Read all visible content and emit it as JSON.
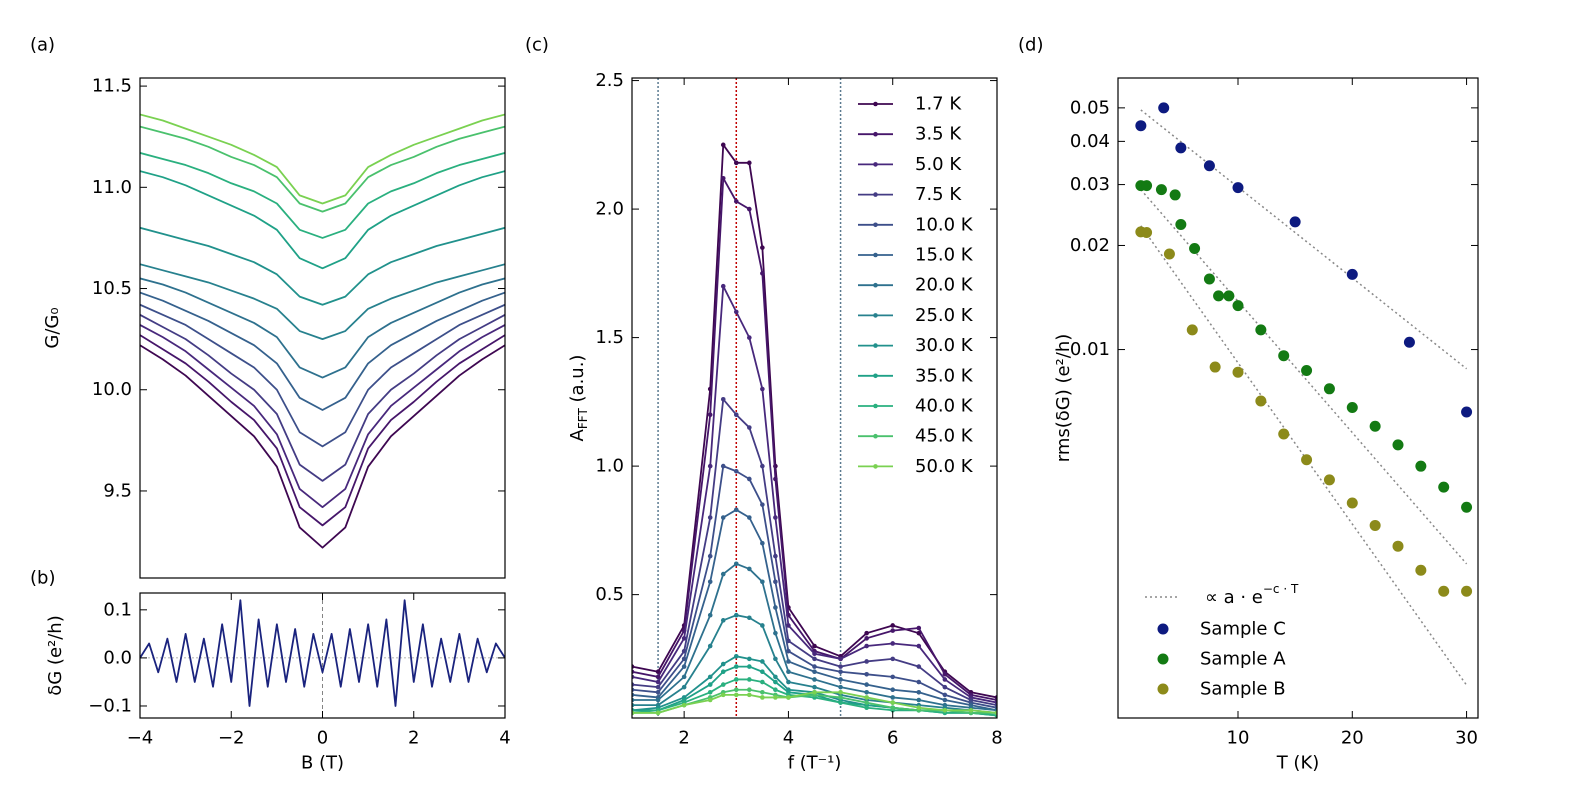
{
  "chart_data": [
    {
      "type": "line",
      "label": "(a)",
      "ylabel": "G/G₀",
      "xlim": [
        -4,
        4
      ],
      "ylim": [
        9.07,
        11.54
      ],
      "yticks": [
        9.5,
        {
          "value": 10,
          "label": "10.0"
        },
        10.5,
        {
          "value": 11,
          "label": "11.0"
        },
        11.5
      ],
      "x": [
        -4,
        -3.5,
        -3,
        -2.5,
        -2,
        -1.5,
        -1,
        -0.5,
        0,
        0.5,
        1,
        1.5,
        2,
        2.5,
        3,
        3.5,
        4
      ],
      "series": [
        {
          "name": "1.7 K",
          "color": "#3e0751",
          "values": [
            10.22,
            10.15,
            10.07,
            9.97,
            9.87,
            9.77,
            9.62,
            9.32,
            9.22,
            9.32,
            9.62,
            9.77,
            9.87,
            9.97,
            10.07,
            10.15,
            10.22
          ]
        },
        {
          "name": "3.5 K",
          "color": "#46166a",
          "values": [
            10.27,
            10.2,
            10.13,
            10.04,
            9.94,
            9.85,
            9.71,
            9.42,
            9.33,
            9.42,
            9.71,
            9.85,
            9.94,
            10.04,
            10.13,
            10.2,
            10.27
          ]
        },
        {
          "name": "5.0 K",
          "color": "#48287c",
          "values": [
            10.32,
            10.26,
            10.19,
            10.1,
            10.01,
            9.92,
            9.78,
            9.51,
            9.42,
            9.51,
            9.78,
            9.92,
            10.01,
            10.1,
            10.19,
            10.26,
            10.32
          ]
        },
        {
          "name": "7.5 K",
          "color": "#443c84",
          "values": [
            10.37,
            10.31,
            10.25,
            10.17,
            10.08,
            10.0,
            9.88,
            9.63,
            9.55,
            9.63,
            9.88,
            10.0,
            10.08,
            10.17,
            10.25,
            10.31,
            10.37
          ]
        },
        {
          "name": "10.0 K",
          "color": "#3d4f8a",
          "values": [
            10.42,
            10.37,
            10.32,
            10.25,
            10.18,
            10.11,
            10.0,
            9.79,
            9.72,
            9.79,
            10.0,
            10.11,
            10.18,
            10.25,
            10.32,
            10.37,
            10.42
          ]
        },
        {
          "name": "15.0 K",
          "color": "#35618d",
          "values": [
            10.48,
            10.44,
            10.39,
            10.34,
            10.28,
            10.22,
            10.13,
            9.96,
            9.9,
            9.96,
            10.13,
            10.22,
            10.28,
            10.34,
            10.39,
            10.44,
            10.48
          ]
        },
        {
          "name": "20.0 K",
          "color": "#2e718e",
          "values": [
            10.55,
            10.52,
            10.48,
            10.43,
            10.38,
            10.33,
            10.26,
            10.11,
            10.06,
            10.11,
            10.26,
            10.33,
            10.38,
            10.43,
            10.48,
            10.52,
            10.55
          ]
        },
        {
          "name": "25.0 K",
          "color": "#27818e",
          "values": [
            10.62,
            10.59,
            10.56,
            10.53,
            10.49,
            10.45,
            10.4,
            10.29,
            10.25,
            10.29,
            10.4,
            10.45,
            10.49,
            10.53,
            10.56,
            10.59,
            10.62
          ]
        },
        {
          "name": "30.0 K",
          "color": "#21918c",
          "values": [
            10.8,
            10.77,
            10.74,
            10.71,
            10.67,
            10.63,
            10.57,
            10.46,
            10.42,
            10.46,
            10.57,
            10.63,
            10.67,
            10.71,
            10.74,
            10.77,
            10.8
          ]
        },
        {
          "name": "35.0 K",
          "color": "#1fa187",
          "values": [
            11.08,
            11.05,
            11.01,
            10.96,
            10.91,
            10.86,
            10.79,
            10.65,
            10.6,
            10.65,
            10.79,
            10.86,
            10.91,
            10.96,
            11.01,
            11.05,
            11.08
          ]
        },
        {
          "name": "40.0 K",
          "color": "#2ab07f",
          "values": [
            11.17,
            11.14,
            11.11,
            11.07,
            11.02,
            10.98,
            10.92,
            10.79,
            10.75,
            10.79,
            10.92,
            10.98,
            11.02,
            11.07,
            11.11,
            11.14,
            11.17
          ]
        },
        {
          "name": "45.0 K",
          "color": "#4ac16d",
          "values": [
            11.3,
            11.27,
            11.24,
            11.2,
            11.15,
            11.11,
            11.05,
            10.92,
            10.88,
            10.92,
            11.05,
            11.11,
            11.15,
            11.2,
            11.24,
            11.27,
            11.3
          ]
        },
        {
          "name": "50.0 K",
          "color": "#7ad151",
          "values": [
            11.36,
            11.33,
            11.29,
            11.25,
            11.21,
            11.16,
            11.1,
            10.96,
            10.92,
            10.96,
            11.1,
            11.16,
            11.21,
            11.25,
            11.29,
            11.33,
            11.36
          ]
        }
      ]
    },
    {
      "type": "line",
      "label": "(b)",
      "ylabel": "δG (e²/h)",
      "xlabel": "B (T)",
      "zero_lines": true,
      "xlim": [
        -4,
        4
      ],
      "ylim": [
        -0.125,
        0.135
      ],
      "xticks": [
        {
          "value": -4,
          "label": "−4"
        },
        {
          "value": -2,
          "label": "−2"
        },
        0,
        2,
        4
      ],
      "yticks": [
        {
          "value": -0.1,
          "label": "−0.1"
        },
        {
          "value": 0,
          "label": "0.0"
        },
        0.1
      ],
      "x": [
        -4,
        -3.8,
        -3.6,
        -3.4,
        -3.2,
        -3,
        -2.8,
        -2.6,
        -2.4,
        -2.2,
        -2,
        -1.8,
        -1.6,
        -1.4,
        -1.2,
        -1,
        -0.8,
        -0.6,
        -0.4,
        -0.2,
        0,
        0.2,
        0.4,
        0.6,
        0.8,
        1,
        1.2,
        1.4,
        1.6,
        1.8,
        2,
        2.2,
        2.4,
        2.6,
        2.8,
        3,
        3.2,
        3.4,
        3.6,
        3.8,
        4
      ],
      "series": [
        {
          "name": "δG",
          "color": "#1a237e",
          "values": [
            0.0,
            0.03,
            -0.03,
            0.04,
            -0.05,
            0.05,
            -0.05,
            0.04,
            -0.06,
            0.07,
            -0.05,
            0.12,
            -0.1,
            0.08,
            -0.06,
            0.07,
            -0.05,
            0.06,
            -0.06,
            0.05,
            -0.03,
            0.05,
            -0.06,
            0.06,
            -0.05,
            0.07,
            -0.06,
            0.08,
            -0.1,
            0.12,
            -0.05,
            0.07,
            -0.06,
            0.04,
            -0.05,
            0.05,
            -0.05,
            0.04,
            -0.03,
            0.03,
            0.0
          ]
        }
      ]
    },
    {
      "type": "line",
      "label": "(c)",
      "ylabel": "A",
      "ylabel_sub": "FFT",
      "ylabel_rest": " (a.u.)",
      "xlabel": "f (T⁻¹)",
      "markers": true,
      "legend": "upper right",
      "xlim": [
        1,
        8
      ],
      "ylim": [
        0.02,
        2.51
      ],
      "xticks": [
        2,
        4,
        6,
        8
      ],
      "yticks": [
        0.5,
        {
          "value": 1,
          "label": "1.0"
        },
        1.5,
        {
          "value": 2,
          "label": "2.0"
        },
        2.5
      ],
      "vlines": [
        {
          "x": 1.5,
          "color": "#5a7a90"
        },
        {
          "x": 3,
          "color": "#c00000"
        },
        {
          "x": 5,
          "color": "#5a7a90"
        }
      ],
      "x": [
        1,
        1.5,
        2,
        2.5,
        2.75,
        3,
        3.25,
        3.5,
        3.75,
        4,
        4.5,
        5,
        5.5,
        6,
        6.5,
        7,
        7.5,
        8
      ],
      "series": [
        {
          "name": "1.7 K",
          "color": "#3e0751",
          "values": [
            0.22,
            0.2,
            0.38,
            1.3,
            2.25,
            2.18,
            2.18,
            1.85,
            1.0,
            0.45,
            0.3,
            0.26,
            0.35,
            0.38,
            0.35,
            0.2,
            0.12,
            0.1
          ]
        },
        {
          "name": "3.5 K",
          "color": "#46166a",
          "values": [
            0.2,
            0.18,
            0.36,
            1.2,
            2.12,
            2.03,
            2.0,
            1.75,
            0.95,
            0.42,
            0.28,
            0.25,
            0.33,
            0.36,
            0.37,
            0.19,
            0.11,
            0.09
          ]
        },
        {
          "name": "5.0 K",
          "color": "#48287c",
          "values": [
            0.18,
            0.16,
            0.33,
            1.0,
            1.7,
            1.6,
            1.5,
            1.3,
            0.8,
            0.38,
            0.27,
            0.25,
            0.3,
            0.31,
            0.3,
            0.17,
            0.1,
            0.08
          ]
        },
        {
          "name": "7.5 K",
          "color": "#443c84",
          "values": [
            0.15,
            0.14,
            0.28,
            0.8,
            1.26,
            1.2,
            1.15,
            1.0,
            0.65,
            0.32,
            0.25,
            0.22,
            0.24,
            0.25,
            0.22,
            0.14,
            0.09,
            0.07
          ]
        },
        {
          "name": "10.0 K",
          "color": "#3d4f8a",
          "values": [
            0.13,
            0.12,
            0.25,
            0.65,
            1.0,
            0.98,
            0.95,
            0.85,
            0.55,
            0.28,
            0.22,
            0.2,
            0.19,
            0.18,
            0.16,
            0.11,
            0.08,
            0.06
          ]
        },
        {
          "name": "15.0 K",
          "color": "#35618d",
          "values": [
            0.11,
            0.1,
            0.22,
            0.55,
            0.8,
            0.83,
            0.8,
            0.7,
            0.45,
            0.24,
            0.2,
            0.17,
            0.15,
            0.13,
            0.12,
            0.09,
            0.07,
            0.05
          ]
        },
        {
          "name": "20.0 K",
          "color": "#2e718e",
          "values": [
            0.09,
            0.09,
            0.18,
            0.42,
            0.58,
            0.62,
            0.6,
            0.55,
            0.35,
            0.2,
            0.17,
            0.14,
            0.12,
            0.1,
            0.09,
            0.07,
            0.06,
            0.05
          ]
        },
        {
          "name": "25.0 K",
          "color": "#27818e",
          "values": [
            0.07,
            0.07,
            0.14,
            0.3,
            0.4,
            0.42,
            0.41,
            0.38,
            0.25,
            0.16,
            0.14,
            0.11,
            0.09,
            0.08,
            0.07,
            0.06,
            0.05,
            0.04
          ]
        },
        {
          "name": "30.0 K",
          "color": "#21918c",
          "values": [
            0.05,
            0.06,
            0.1,
            0.18,
            0.23,
            0.26,
            0.25,
            0.24,
            0.18,
            0.13,
            0.12,
            0.09,
            0.07,
            0.06,
            0.05,
            0.05,
            0.04,
            0.04
          ]
        },
        {
          "name": "35.0 K",
          "color": "#1fa187",
          "values": [
            0.05,
            0.05,
            0.09,
            0.15,
            0.2,
            0.22,
            0.22,
            0.2,
            0.16,
            0.12,
            0.11,
            0.08,
            0.07,
            0.06,
            0.05,
            0.04,
            0.04,
            0.03
          ]
        },
        {
          "name": "40.0 K",
          "color": "#2ab07f",
          "values": [
            0.04,
            0.05,
            0.08,
            0.12,
            0.15,
            0.17,
            0.17,
            0.16,
            0.13,
            0.11,
            0.1,
            0.08,
            0.06,
            0.05,
            0.05,
            0.04,
            0.04,
            0.03
          ]
        },
        {
          "name": "45.0 K",
          "color": "#4ac16d",
          "values": [
            0.04,
            0.04,
            0.07,
            0.1,
            0.12,
            0.13,
            0.13,
            0.12,
            0.11,
            0.1,
            0.11,
            0.1,
            0.08,
            0.06,
            0.05,
            0.05,
            0.04,
            0.04
          ]
        },
        {
          "name": "50.0 K",
          "color": "#7ad151",
          "values": [
            0.04,
            0.04,
            0.07,
            0.09,
            0.11,
            0.11,
            0.11,
            0.1,
            0.1,
            0.1,
            0.12,
            0.12,
            0.1,
            0.08,
            0.06,
            0.05,
            0.05,
            0.04
          ]
        }
      ]
    },
    {
      "type": "scatter",
      "label": "(d)",
      "ylabel": "rms(δG) (e²/h)",
      "xlabel": "T (K)",
      "ylog": true,
      "legend": "lower left",
      "xlim": [
        -0.5,
        31
      ],
      "ylim": [
        0.00086,
        0.061
      ],
      "xticks": [
        10,
        20,
        30
      ],
      "yticks": [
        0.01,
        0.02,
        0.03,
        0.04,
        0.05
      ],
      "fit_label": "∝ a · e",
      "fit_label_sup": "−c · T",
      "fit_color": "#888888",
      "fits": [
        {
          "x": [
            1.5,
            30
          ],
          "values": [
            0.0493,
            0.0088
          ]
        },
        {
          "x": [
            1.5,
            30
          ],
          "values": [
            0.029,
            0.0024
          ]
        },
        {
          "x": [
            1.5,
            30
          ],
          "values": [
            0.0228,
            0.00107
          ]
        }
      ],
      "series": [
        {
          "name": "Sample C",
          "color": "#0d1a80",
          "x": [
            1.5,
            3.5,
            5,
            7.5,
            10,
            15,
            20,
            25,
            30
          ],
          "values": [
            0.0444,
            0.05,
            0.0383,
            0.034,
            0.0294,
            0.0234,
            0.0165,
            0.0105,
            0.0066
          ]
        },
        {
          "name": "Sample A",
          "color": "#137a13",
          "x": [
            1.5,
            2,
            3.3,
            4.5,
            5,
            6.2,
            7.5,
            8.3,
            9.2,
            10,
            12,
            14,
            16,
            18,
            20,
            22,
            24,
            26,
            28,
            30
          ],
          "values": [
            0.0298,
            0.0298,
            0.029,
            0.028,
            0.023,
            0.0196,
            0.016,
            0.0143,
            0.0143,
            0.0134,
            0.0114,
            0.0096,
            0.0087,
            0.0077,
            0.0068,
            0.006,
            0.0053,
            0.0046,
            0.004,
            0.0035
          ]
        },
        {
          "name": "Sample B",
          "color": "#8c8a1a",
          "x": [
            1.5,
            2,
            4,
            6,
            8,
            10,
            12,
            14,
            16,
            18,
            20,
            22,
            24,
            26,
            28,
            30
          ],
          "values": [
            0.0219,
            0.0218,
            0.0189,
            0.0114,
            0.0089,
            0.0086,
            0.0071,
            0.0057,
            0.0048,
            0.0042,
            0.0036,
            0.0031,
            0.0027,
            0.0023,
            0.002,
            0.002
          ]
        }
      ]
    }
  ]
}
